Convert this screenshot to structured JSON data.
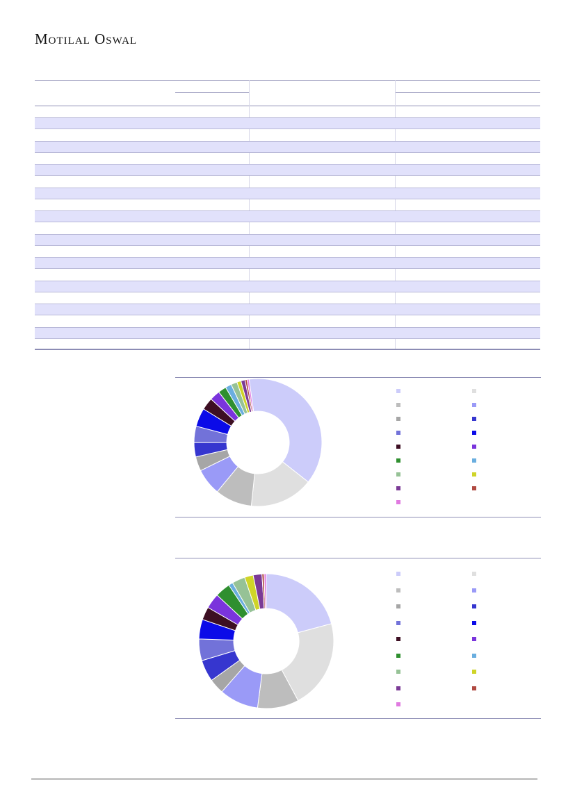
{
  "header": {
    "brand": "Motilal Oswal"
  },
  "table": {
    "band_rows": 10,
    "plain_rows": 11
  },
  "chart_data": [
    {
      "type": "pie",
      "title": "",
      "legend_position": "right",
      "slices": [
        {
          "label": "",
          "value": 36.5,
          "color": "#ccccfa"
        },
        {
          "label": "",
          "value": 15.5,
          "color": "#dfdfdf"
        },
        {
          "label": "",
          "value": 9.0,
          "color": "#bdbdbd"
        },
        {
          "label": "",
          "value": 6.5,
          "color": "#9a9af7"
        },
        {
          "label": "",
          "value": 3.5,
          "color": "#a6a6a6"
        },
        {
          "label": "",
          "value": 3.5,
          "color": "#3636cf"
        },
        {
          "label": "",
          "value": 4.0,
          "color": "#7272d9"
        },
        {
          "label": "",
          "value": 4.5,
          "color": "#0b0be8"
        },
        {
          "label": "",
          "value": 3.0,
          "color": "#3d0f23"
        },
        {
          "label": "",
          "value": 2.5,
          "color": "#7a34dc"
        },
        {
          "label": "",
          "value": 2.0,
          "color": "#2f8f2f"
        },
        {
          "label": "",
          "value": 1.5,
          "color": "#6aaedf"
        },
        {
          "label": "",
          "value": 1.5,
          "color": "#96c296"
        },
        {
          "label": "",
          "value": 1.0,
          "color": "#cfd428"
        },
        {
          "label": "",
          "value": 1.0,
          "color": "#7b3a96"
        },
        {
          "label": "",
          "value": 0.5,
          "color": "#b04a42"
        },
        {
          "label": "",
          "value": 0.5,
          "color": "#e07ae0"
        }
      ]
    },
    {
      "type": "pie",
      "title": "",
      "legend_position": "right",
      "slices": [
        {
          "label": "",
          "value": 20.0,
          "color": "#ccccfa"
        },
        {
          "label": "",
          "value": 20.5,
          "color": "#dfdfdf"
        },
        {
          "label": "",
          "value": 9.5,
          "color": "#bdbdbd"
        },
        {
          "label": "",
          "value": 9.0,
          "color": "#9a9af7"
        },
        {
          "label": "",
          "value": 3.5,
          "color": "#a6a6a6"
        },
        {
          "label": "",
          "value": 5.0,
          "color": "#3636cf"
        },
        {
          "label": "",
          "value": 5.0,
          "color": "#7272d9"
        },
        {
          "label": "",
          "value": 4.5,
          "color": "#0b0be8"
        },
        {
          "label": "",
          "value": 3.0,
          "color": "#3d0f23"
        },
        {
          "label": "",
          "value": 3.5,
          "color": "#7a34dc"
        },
        {
          "label": "",
          "value": 3.5,
          "color": "#2f8f2f"
        },
        {
          "label": "",
          "value": 1.0,
          "color": "#6aaedf"
        },
        {
          "label": "",
          "value": 3.0,
          "color": "#96c296"
        },
        {
          "label": "",
          "value": 2.0,
          "color": "#cfd428"
        },
        {
          "label": "",
          "value": 2.0,
          "color": "#7b3a96"
        },
        {
          "label": "",
          "value": 0.5,
          "color": "#b04a42"
        },
        {
          "label": "",
          "value": 0.5,
          "color": "#e07ae0"
        }
      ]
    }
  ]
}
